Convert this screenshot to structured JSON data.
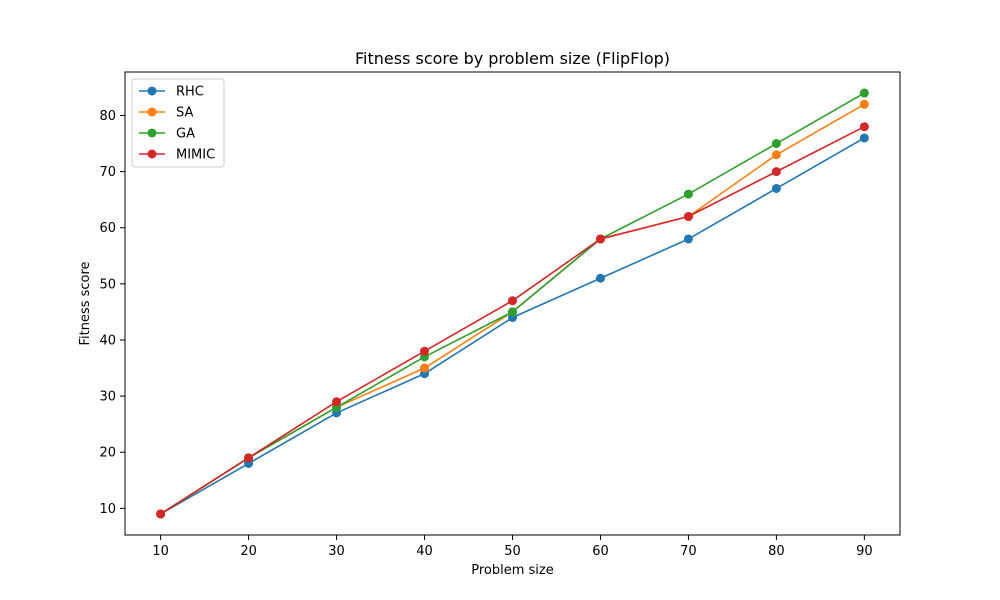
{
  "chart_data": {
    "type": "line",
    "title": "Fitness score by problem size (FlipFlop)",
    "xlabel": "Problem size",
    "ylabel": "Fitness score",
    "x": [
      10,
      20,
      30,
      40,
      50,
      60,
      70,
      80,
      90
    ],
    "xticks": [
      10,
      20,
      30,
      40,
      50,
      60,
      70,
      80,
      90
    ],
    "yticks": [
      10,
      20,
      30,
      40,
      50,
      60,
      70,
      80
    ],
    "xlim": [
      5.95,
      94.05
    ],
    "ylim": [
      5.25,
      87.75
    ],
    "grid": false,
    "legend_position": "top-left",
    "marker": "circle",
    "series": [
      {
        "name": "RHC",
        "color": "#1f77b4",
        "values": [
          9,
          18,
          27,
          34,
          44,
          51,
          58,
          67,
          76
        ]
      },
      {
        "name": "SA",
        "color": "#ff7f0e",
        "values": [
          9,
          19,
          28,
          35,
          45,
          58,
          62,
          73,
          82
        ]
      },
      {
        "name": "GA",
        "color": "#2ca02c",
        "values": [
          9,
          19,
          28,
          37,
          45,
          58,
          66,
          75,
          84
        ]
      },
      {
        "name": "MIMIC",
        "color": "#d62728",
        "values": [
          9,
          19,
          29,
          38,
          47,
          58,
          62,
          70,
          78
        ]
      }
    ]
  }
}
